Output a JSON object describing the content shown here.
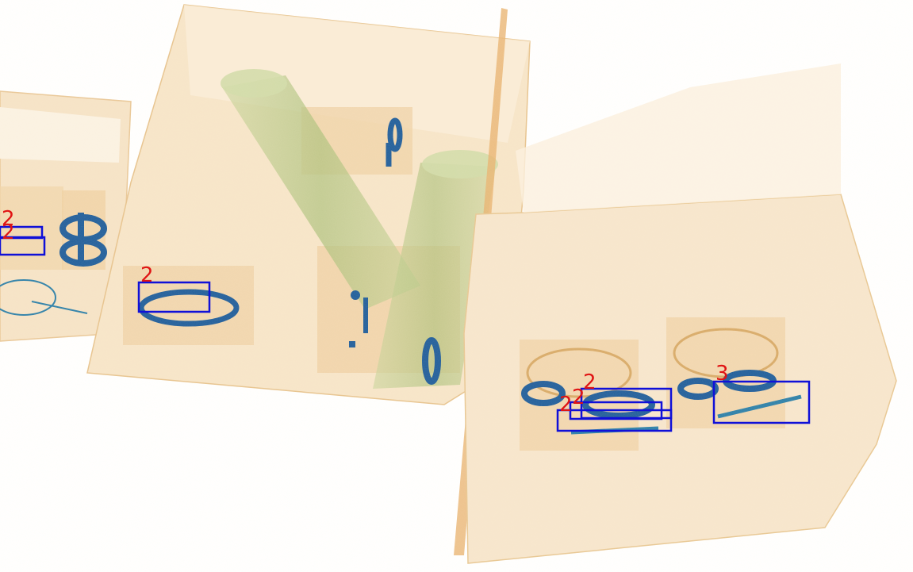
{
  "image": {
    "kind": "x-ray baggage scan",
    "colors": {
      "organic": "#f3d9b0",
      "organic_dark": "#e2b77c",
      "green_tube": "#b7c98a",
      "metal": "#1f5d9a",
      "box_stroke": "#1010d8",
      "label_text": "#e01414"
    }
  },
  "detections": [
    {
      "label": "2"
    },
    {
      "label": "2"
    },
    {
      "label": "2"
    },
    {
      "label": "2"
    },
    {
      "label": "2"
    },
    {
      "label": "2"
    },
    {
      "label": "3"
    }
  ]
}
